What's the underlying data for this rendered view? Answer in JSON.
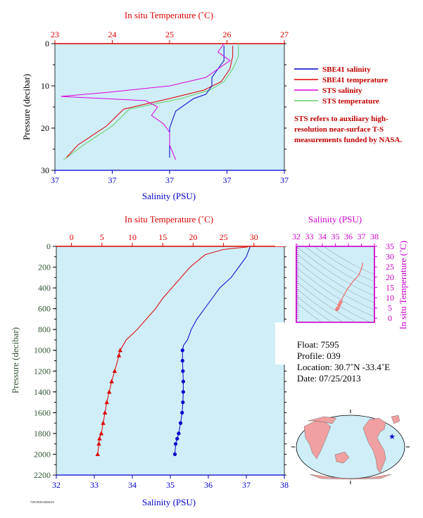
{
  "colors": {
    "panel_bg": "#cfeef8",
    "salinity": "#0000cc",
    "temperature": "#dd0000",
    "sts_salinity": "#dd00dd",
    "sts_temperature": "#66cc66",
    "ts_axis": "#cc00cc",
    "pressure_label": "#335533"
  },
  "legend": {
    "items": [
      {
        "label": "SBE41 salinity",
        "color": "#0000cc"
      },
      {
        "label": "SBE41 temperature",
        "color": "#dd0000"
      },
      {
        "label": "STS salinity",
        "color": "#dd00dd"
      },
      {
        "label": "STS temperature",
        "color": "#66cc66"
      }
    ],
    "note": "STS refers to auxiliary high-resolution near-surface T-S measurements funded by NASA."
  },
  "info": {
    "float": "Float:  7595",
    "profile": "Profile:  039",
    "location": "Location:  30.7˚N  -33.4˚E",
    "date": "Date:  07/25/2013"
  },
  "footer_tiny": "7595 P039.ISDSSTS",
  "chart_data": [
    {
      "type": "line",
      "panel": "top",
      "title": "",
      "xlabel_top": "In situ Temperature (˚C)",
      "xlabel_bottom": "Salinity (PSU)",
      "ylabel": "Pressure (decibar)",
      "temp_ticks": [
        "23",
        "24",
        "25",
        "26",
        "27"
      ],
      "temp_lim": [
        23,
        27
      ],
      "sal_ticks": [
        "37",
        "37",
        "37",
        "37",
        "37"
      ],
      "sal_lim": [
        36.86,
        37.24
      ],
      "y_ticks": [
        "0",
        "10",
        "20",
        "30"
      ],
      "ylim": [
        0,
        30
      ],
      "y_inverted": true,
      "series": [
        {
          "name": "SBE41 salinity",
          "axis": "salinity",
          "x": [
            37.14,
            37.14,
            37.14,
            37.13,
            37.12,
            37.12,
            37.11,
            37.09,
            37.06,
            37.05,
            37.05,
            37.05
          ],
          "y": [
            0.5,
            2,
            4,
            6,
            8,
            10,
            12,
            13,
            16,
            20,
            24,
            27
          ]
        },
        {
          "name": "SBE41 temperature",
          "axis": "temperature",
          "x": [
            26.1,
            26.1,
            26.05,
            25.9,
            25.6,
            25.0,
            24.2,
            23.9,
            23.4,
            23.2
          ],
          "y": [
            0.5,
            3,
            6,
            9,
            11,
            13,
            15.5,
            19.5,
            24,
            27
          ]
        },
        {
          "name": "STS salinity",
          "axis": "salinity",
          "x": [
            37.14,
            37.13,
            37.15,
            37.13,
            37.11,
            37.05,
            36.95,
            36.87,
            37.01,
            37.03,
            37.02,
            37.04,
            37.05,
            37.05,
            37.06
          ],
          "y": [
            0,
            2,
            4,
            6,
            8,
            10,
            11.5,
            12.5,
            13.5,
            15,
            17,
            19,
            21,
            24,
            27.5
          ]
        },
        {
          "name": "STS temperature",
          "axis": "temperature",
          "x": [
            26.2,
            26.2,
            26.1,
            25.95,
            25.7,
            25.2,
            24.3,
            24.0,
            23.5,
            23.15
          ],
          "y": [
            0,
            3,
            6,
            9,
            11,
            13,
            15.5,
            19.5,
            24,
            27.5
          ]
        }
      ]
    },
    {
      "type": "line",
      "panel": "bottom",
      "xlabel_top": "In situ Temperature (˚C)",
      "xlabel_bottom": "Salinity (PSU)",
      "ylabel": "Pressure (decibar)",
      "temp_ticks": [
        "0",
        "5",
        "10",
        "15",
        "20",
        "25",
        "30",
        "35"
      ],
      "temp_lim": [
        -2.5,
        35
      ],
      "sal_ticks": [
        "32",
        "33",
        "34",
        "35",
        "36",
        "37",
        "38"
      ],
      "sal_lim": [
        32,
        38
      ],
      "y_ticks": [
        "0",
        "200",
        "400",
        "600",
        "800",
        "1000",
        "1200",
        "1400",
        "1600",
        "1800",
        "2000",
        "2200"
      ],
      "ylim": [
        0,
        2200
      ],
      "y_inverted": true,
      "series": [
        {
          "name": "Salinity",
          "axis": "salinity",
          "x": [
            37.1,
            37.05,
            37.0,
            36.8,
            36.6,
            36.3,
            36.1,
            35.9,
            35.7,
            35.55,
            35.45,
            35.35,
            35.32,
            35.32,
            35.33,
            35.34,
            35.34,
            35.33,
            35.31,
            35.27,
            35.22,
            35.18,
            35.14,
            35.12
          ],
          "y": [
            5,
            50,
            100,
            200,
            300,
            400,
            500,
            600,
            700,
            800,
            900,
            950,
            1000,
            1100,
            1200,
            1300,
            1400,
            1500,
            1600,
            1700,
            1800,
            1850,
            1900,
            2000
          ]
        },
        {
          "name": "Temperature",
          "axis": "temperature",
          "x": [
            29.0,
            25.0,
            22.0,
            19.5,
            18.0,
            16.5,
            15.0,
            13.8,
            12.3,
            10.8,
            9.0,
            8.0,
            7.8,
            7.1,
            6.6,
            6.2,
            5.8,
            5.5,
            5.2,
            4.9,
            4.6,
            4.5,
            4.3
          ],
          "y": [
            5,
            30,
            80,
            200,
            300,
            400,
            500,
            600,
            700,
            800,
            900,
            1000,
            1050,
            1200,
            1300,
            1400,
            1500,
            1600,
            1700,
            1800,
            1850,
            1900,
            2000
          ]
        }
      ]
    },
    {
      "type": "line",
      "panel": "ts-diagram",
      "xlabel": "Salinity (PSU)",
      "ylabel": "In situ Temperature (˚C)",
      "x_ticks": [
        "32",
        "33",
        "34",
        "35",
        "36",
        "37",
        "38"
      ],
      "xlim": [
        32,
        38
      ],
      "y_ticks": [
        "0",
        "5",
        "10",
        "15",
        "20",
        "25",
        "30",
        "35"
      ],
      "ylim": [
        -2,
        35
      ],
      "series": [
        {
          "name": "T-S",
          "x": [
            35.12,
            35.2,
            35.3,
            35.4,
            35.55,
            35.9,
            36.3,
            36.8,
            37.05,
            37.1
          ],
          "y": [
            4.3,
            5.0,
            6.5,
            7.8,
            10.0,
            14.0,
            17.5,
            21.0,
            25.0,
            27.0
          ]
        }
      ]
    }
  ]
}
